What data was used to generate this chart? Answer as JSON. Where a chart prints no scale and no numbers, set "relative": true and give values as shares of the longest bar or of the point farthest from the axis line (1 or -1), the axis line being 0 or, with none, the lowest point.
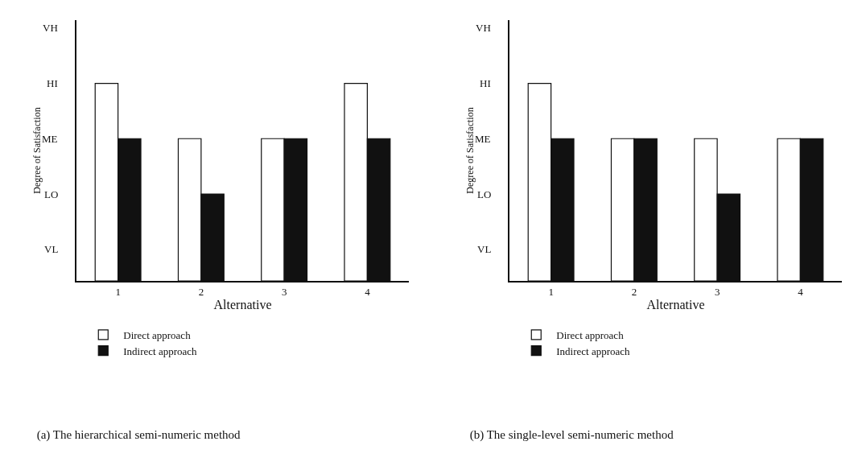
{
  "chart_data": [
    {
      "type": "bar",
      "title": "(a) The hierarchical semi-numeric method",
      "xlabel": "Alternative",
      "ylabel": "Degree of Satisfaction",
      "categories": [
        "1",
        "2",
        "3",
        "4"
      ],
      "series": [
        {
          "name": "Direct approach",
          "color": "#ffffff",
          "values": [
            1,
            0.72,
            0.72,
            1
          ]
        },
        {
          "name": "Indirect approach",
          "color": "#111111",
          "values": [
            0.72,
            0.44,
            0.72,
            0.72
          ]
        }
      ],
      "relative": true,
      "annotations": [
        "VH",
        "HI",
        "ME",
        "LO",
        "VL"
      ],
      "grid": false,
      "legend": "bottom"
    },
    {
      "type": "bar",
      "title": "(b) The single-level semi-numeric method",
      "xlabel": "Alternative",
      "ylabel": "Degree of Satisfaction",
      "categories": [
        "1",
        "2",
        "3",
        "4"
      ],
      "series": [
        {
          "name": "Direct approach",
          "color": "#ffffff",
          "values": [
            1,
            0.72,
            0.72,
            0.72
          ]
        },
        {
          "name": "Indirect approach",
          "color": "#111111",
          "values": [
            0.72,
            0.72,
            0.44,
            0.72
          ]
        }
      ],
      "relative": true,
      "annotations": [
        "VH",
        "HI",
        "ME",
        "LO",
        "VL"
      ],
      "grid": false,
      "legend": "bottom"
    }
  ]
}
